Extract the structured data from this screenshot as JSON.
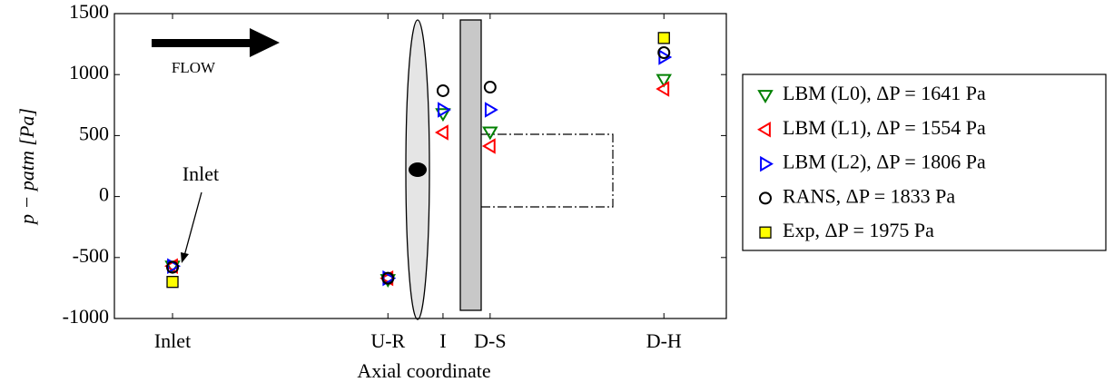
{
  "chart_data": {
    "type": "scatter",
    "y_label": "p − patm [Pa]",
    "x_label": "Axial coordinate",
    "annotations": [
      "FLOW",
      "Inlet"
    ],
    "xlim": [
      0,
      1
    ],
    "xticks": [
      {
        "value": 0.095,
        "label": "Inlet"
      },
      {
        "value": 0.447,
        "label": "U-R"
      },
      {
        "value": 0.537,
        "label": "I"
      },
      {
        "value": 0.614,
        "label": "D-S"
      },
      {
        "value": 0.898,
        "label": "D-H"
      }
    ],
    "ylim": [
      -1000,
      1500
    ],
    "yticks": [
      -1000,
      -500,
      0,
      500,
      1000,
      1500
    ],
    "series": [
      {
        "name": "LBM (L0), ΔP = 1641 Pa",
        "color": "#008000",
        "marker": "triangle-down",
        "values": [
          -570,
          -680,
          680,
          530,
          960
        ]
      },
      {
        "name": "LBM (L1), ΔP = 1554 Pa",
        "color": "#ff0000",
        "marker": "triangle-left",
        "values": [
          -570,
          -670,
          525,
          414,
          882
        ]
      },
      {
        "name": "LBM (L2), ΔP = 1806 Pa",
        "color": "#0000ff",
        "marker": "triangle-right",
        "values": [
          -570,
          -670,
          711,
          711,
          1143
        ]
      },
      {
        "name": "RANS, ΔP = 1833 Pa",
        "color": "#000000",
        "marker": "circle",
        "values": [
          -580,
          -670,
          868,
          897,
          1180
        ]
      },
      {
        "name": "Exp, ΔP = 1975 Pa",
        "color": "#ffff00",
        "marker": "square",
        "values": [
          -700,
          null,
          null,
          null,
          1300
        ]
      }
    ]
  }
}
